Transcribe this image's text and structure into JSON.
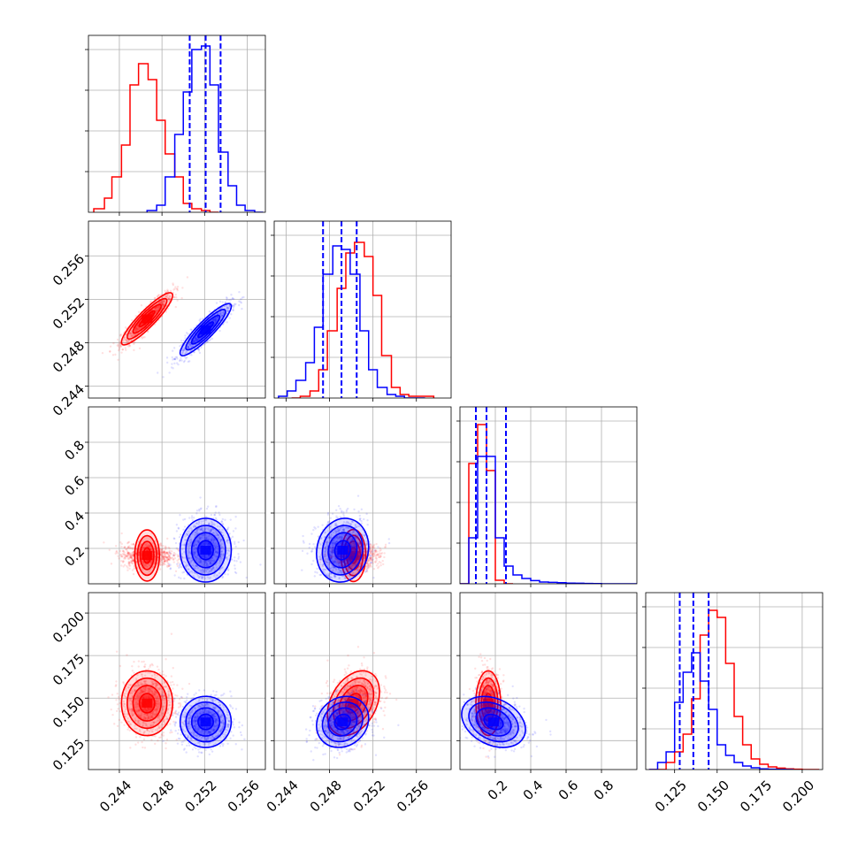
{
  "colors": {
    "series_a": "#ff0000",
    "series_b": "#0000ff",
    "grid": "#b0b0b0",
    "axes": "#000000"
  },
  "chart_data": {
    "type": "corner",
    "grid": true,
    "parameters": [
      {
        "ticks": [
          0.244,
          0.248,
          0.252,
          0.256
        ],
        "labels": [
          "0.244",
          "0.248",
          "0.252",
          "0.256"
        ],
        "range": [
          0.2411,
          0.2577
        ]
      },
      {
        "ticks": [
          0.244,
          0.248,
          0.252,
          0.256
        ],
        "labels": [
          "0.244",
          "0.248",
          "0.252",
          "0.256"
        ],
        "range": [
          0.2429,
          0.2592
        ]
      },
      {
        "ticks": [
          0.2,
          0.4,
          0.6,
          0.8
        ],
        "labels": [
          "0.2",
          "0.4",
          "0.6",
          "0.8"
        ],
        "range": [
          0.0,
          1.0
        ]
      },
      {
        "ticks": [
          0.125,
          0.15,
          0.175,
          0.2
        ],
        "labels": [
          "0.125",
          "0.150",
          "0.175",
          "0.200"
        ],
        "range": [
          0.108,
          0.212
        ]
      }
    ],
    "series": [
      {
        "color": "#ff0000",
        "means": [
          0.2466,
          0.2502,
          0.16,
          0.147
        ],
        "sds": [
          0.0012,
          0.0012,
          0.035,
          0.0095
        ],
        "corr": [
          [
            1,
            0.9,
            0,
            0
          ],
          [
            0.9,
            1,
            0,
            0.35
          ],
          [
            0,
            0,
            1,
            0
          ],
          [
            0,
            0.35,
            0,
            1
          ]
        ],
        "hist_bins": [
          [
            [
              0.2416,
              0.2426
            ],
            [
              0.2426,
              0.2433
            ],
            [
              0.2433,
              0.2442
            ],
            [
              0.2442,
              0.245
            ],
            [
              0.245,
              0.2458
            ],
            [
              0.2458,
              0.2467
            ],
            [
              0.2467,
              0.2475
            ],
            [
              0.2475,
              0.2483
            ],
            [
              0.2483,
              0.2492
            ],
            [
              0.2492,
              0.25
            ],
            [
              0.25,
              0.2508
            ],
            [
              0.2508,
              0.2517
            ],
            [
              0.2517,
              0.2525
            ],
            [
              0.2525,
              0.2533
            ]
          ],
          [
            [
              0.2445,
              0.2453
            ],
            [
              0.2453,
              0.2462
            ],
            [
              0.2462,
              0.247
            ],
            [
              0.247,
              0.2478
            ],
            [
              0.2478,
              0.2487
            ],
            [
              0.2487,
              0.2495
            ],
            [
              0.2495,
              0.2503
            ],
            [
              0.2503,
              0.2512
            ],
            [
              0.2512,
              0.252
            ],
            [
              0.252,
              0.2528
            ],
            [
              0.2528,
              0.2537
            ],
            [
              0.2537,
              0.2545
            ],
            [
              0.2545,
              0.2553
            ],
            [
              0.2553,
              0.2576
            ]
          ],
          [
            [
              0.0,
              0.05
            ],
            [
              0.05,
              0.1
            ],
            [
              0.1,
              0.15
            ],
            [
              0.15,
              0.2
            ],
            [
              0.2,
              0.25
            ],
            [
              0.25,
              0.3
            ]
          ],
          [
            [
              0.11,
              0.115
            ],
            [
              0.115,
              0.12
            ],
            [
              0.12,
              0.125
            ],
            [
              0.125,
              0.13
            ],
            [
              0.13,
              0.135
            ],
            [
              0.135,
              0.14
            ],
            [
              0.14,
              0.145
            ],
            [
              0.145,
              0.15
            ],
            [
              0.15,
              0.155
            ],
            [
              0.155,
              0.16
            ],
            [
              0.16,
              0.165
            ],
            [
              0.165,
              0.17
            ],
            [
              0.17,
              0.175
            ],
            [
              0.175,
              0.18
            ],
            [
              0.18,
              0.185
            ],
            [
              0.185,
              0.19
            ],
            [
              0.19,
              0.195
            ],
            [
              0.195,
              0.2
            ],
            [
              0.2,
              0.205
            ],
            [
              0.205,
              0.21
            ]
          ]
        ],
        "hist_counts": [
          [
            0.02,
            0.08,
            0.2,
            0.38,
            0.72,
            0.84,
            0.75,
            0.52,
            0.33,
            0.2,
            0.05,
            0.02,
            0.01,
            0.0
          ],
          [
            0.0,
            0.01,
            0.04,
            0.16,
            0.38,
            0.62,
            0.82,
            0.88,
            0.8,
            0.58,
            0.24,
            0.06,
            0.02,
            0.01
          ],
          [
            0.0,
            0.68,
            0.9,
            0.64,
            0.02,
            0.0
          ],
          [
            0.0,
            0.0,
            0.04,
            0.1,
            0.2,
            0.4,
            0.76,
            0.9,
            0.86,
            0.6,
            0.3,
            0.14,
            0.06,
            0.03,
            0.015,
            0.008,
            0.004,
            0.002,
            0.0,
            0.0
          ]
        ],
        "quantiles": []
      },
      {
        "color": "#0000ff",
        "means": [
          0.2521,
          0.2492,
          0.19,
          0.136
        ],
        "sds": [
          0.0012,
          0.0012,
          0.09,
          0.0075
        ],
        "corr": [
          [
            1,
            0.9,
            0,
            0
          ],
          [
            0.9,
            1,
            0.1,
            0.15
          ],
          [
            0,
            0.1,
            1,
            -0.3
          ],
          [
            0,
            0.15,
            -0.3,
            1
          ]
        ],
        "hist_bins": [
          [
            [
              0.2466,
              0.2475
            ],
            [
              0.2475,
              0.2483
            ],
            [
              0.2483,
              0.2492
            ],
            [
              0.2492,
              0.25
            ],
            [
              0.25,
              0.2508
            ],
            [
              0.2508,
              0.2517
            ],
            [
              0.2517,
              0.2525
            ],
            [
              0.2525,
              0.2533
            ],
            [
              0.2533,
              0.2542
            ],
            [
              0.2542,
              0.255
            ],
            [
              0.255,
              0.2558
            ],
            [
              0.2558,
              0.2567
            ],
            [
              0.2567,
              0.2575
            ]
          ],
          [
            [
              0.2433,
              0.2441
            ],
            [
              0.2441,
              0.2449
            ],
            [
              0.2449,
              0.2458
            ],
            [
              0.2458,
              0.2466
            ],
            [
              0.2466,
              0.2474
            ],
            [
              0.2474,
              0.2483
            ],
            [
              0.2483,
              0.2491
            ],
            [
              0.2491,
              0.2499
            ],
            [
              0.2499,
              0.2508
            ],
            [
              0.2508,
              0.2516
            ],
            [
              0.2516,
              0.2524
            ],
            [
              0.2524,
              0.2533
            ],
            [
              0.2533,
              0.2541
            ],
            [
              0.2541,
              0.2549
            ],
            [
              0.2549,
              0.2568
            ]
          ],
          [
            [
              0.0,
              0.05
            ],
            [
              0.05,
              0.1
            ],
            [
              0.1,
              0.15
            ],
            [
              0.15,
              0.2
            ],
            [
              0.2,
              0.25
            ],
            [
              0.25,
              0.3
            ],
            [
              0.3,
              0.35
            ],
            [
              0.35,
              0.4
            ],
            [
              0.4,
              0.45
            ],
            [
              0.45,
              0.5
            ],
            [
              0.5,
              0.55
            ],
            [
              0.55,
              0.6
            ],
            [
              0.6,
              0.65
            ],
            [
              0.65,
              0.7
            ],
            [
              0.7,
              0.75
            ],
            [
              0.75,
              0.8
            ],
            [
              0.8,
              0.85
            ],
            [
              0.85,
              0.9
            ],
            [
              0.9,
              0.95
            ],
            [
              0.95,
              1.0
            ]
          ],
          [
            [
              0.11,
              0.115
            ],
            [
              0.115,
              0.12
            ],
            [
              0.12,
              0.125
            ],
            [
              0.125,
              0.13
            ],
            [
              0.13,
              0.135
            ],
            [
              0.135,
              0.14
            ],
            [
              0.14,
              0.145
            ],
            [
              0.145,
              0.15
            ],
            [
              0.15,
              0.155
            ],
            [
              0.155,
              0.16
            ],
            [
              0.16,
              0.165
            ],
            [
              0.165,
              0.17
            ],
            [
              0.17,
              0.175
            ],
            [
              0.175,
              0.18
            ],
            [
              0.18,
              0.185
            ],
            [
              0.185,
              0.19
            ],
            [
              0.19,
              0.195
            ]
          ]
        ],
        "hist_counts": [
          [
            0.01,
            0.04,
            0.2,
            0.44,
            0.68,
            0.92,
            0.94,
            0.72,
            0.34,
            0.15,
            0.04,
            0.01,
            0.0
          ],
          [
            0.01,
            0.04,
            0.1,
            0.2,
            0.4,
            0.7,
            0.86,
            0.84,
            0.7,
            0.38,
            0.16,
            0.06,
            0.02,
            0.01,
            0.0
          ],
          [
            0.0,
            0.26,
            0.72,
            0.72,
            0.26,
            0.1,
            0.05,
            0.03,
            0.018,
            0.01,
            0.008,
            0.006,
            0.004,
            0.003,
            0.002,
            0.001,
            0.0,
            0.0,
            0.0,
            0.0
          ],
          [
            0.0,
            0.04,
            0.1,
            0.38,
            0.55,
            0.66,
            0.5,
            0.34,
            0.14,
            0.08,
            0.04,
            0.02,
            0.01,
            0.004,
            0.002,
            0.001,
            0.0
          ]
        ],
        "quantiles": [
          [
            0.2506,
            0.2521,
            0.2535
          ],
          [
            0.2474,
            0.2491,
            0.2505
          ],
          [
            0.09,
            0.15,
            0.26
          ],
          [
            0.128,
            0.136,
            0.145
          ]
        ]
      }
    ]
  }
}
